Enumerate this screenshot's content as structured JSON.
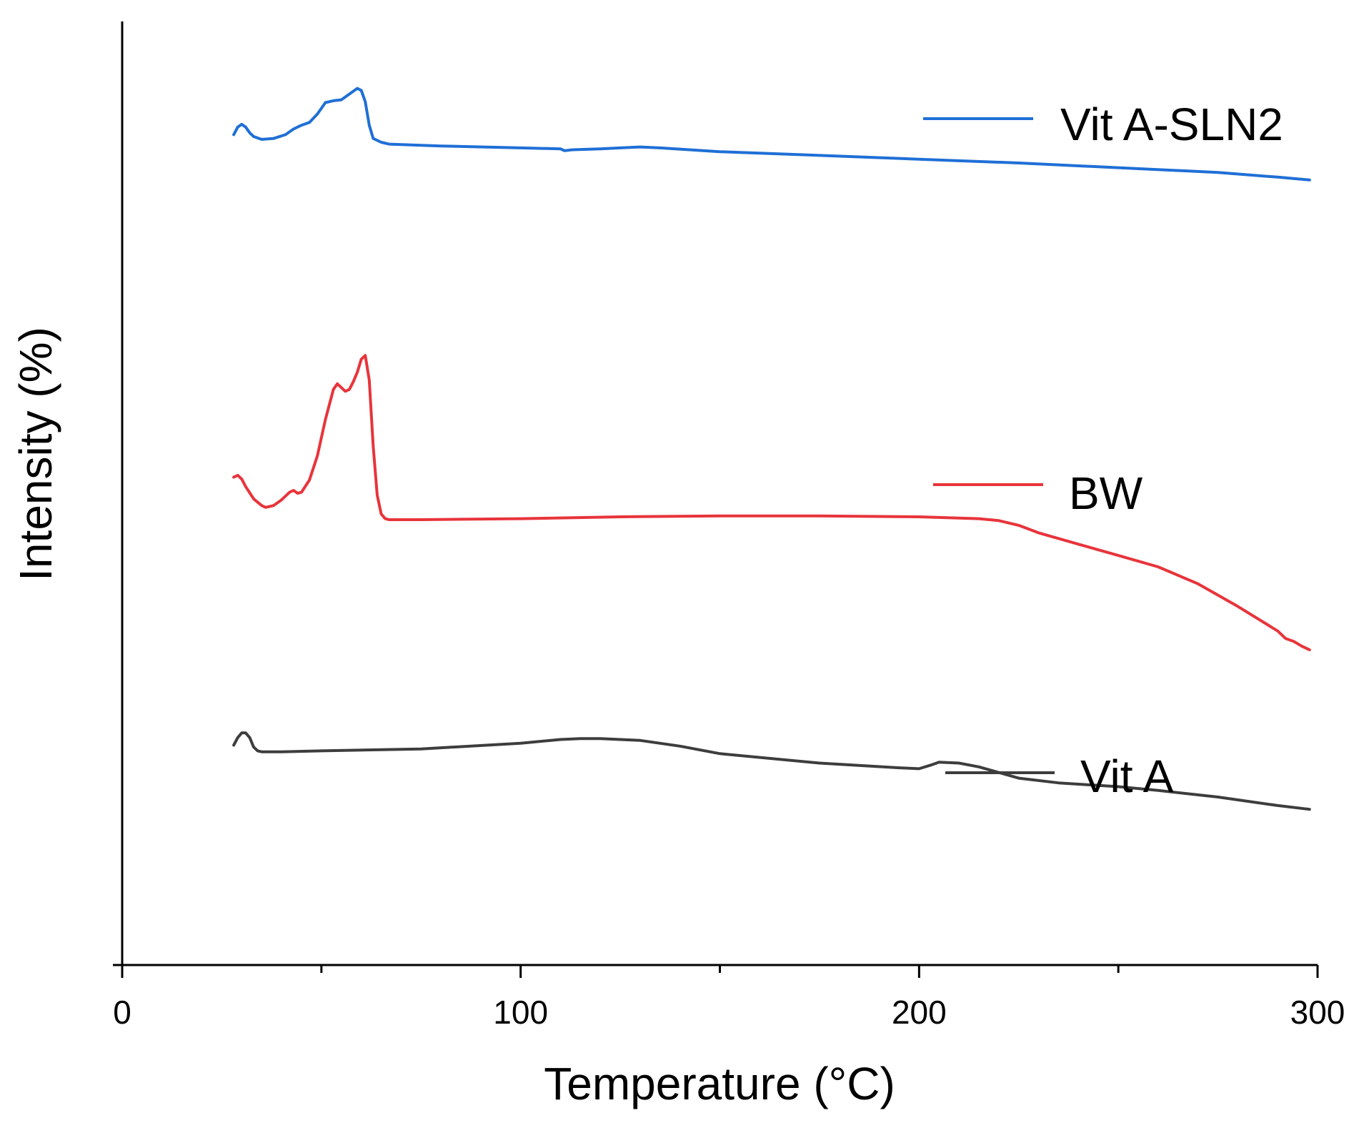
{
  "chart_data": {
    "type": "line",
    "title": "",
    "xlabel": "Temperature (°C)",
    "ylabel": "Intensity (%)",
    "xlim": [
      0,
      300
    ],
    "ylim": [
      0,
      100
    ],
    "x_ticks": [
      "0",
      "100",
      "200",
      "300"
    ],
    "x_minor_ticks": [
      50,
      150,
      250
    ],
    "y_ticks_shown": false,
    "grid": false,
    "legend": "inline-right",
    "series": [
      {
        "name": "Vit A-SLN2",
        "color": "#1f6fd6",
        "points": [
          [
            28,
            88.0
          ],
          [
            29,
            88.8
          ],
          [
            30,
            89.1
          ],
          [
            31,
            88.8
          ],
          [
            32,
            88.2
          ],
          [
            33,
            87.8
          ],
          [
            35,
            87.5
          ],
          [
            38,
            87.6
          ],
          [
            41,
            88.0
          ],
          [
            43,
            88.6
          ],
          [
            45,
            89.0
          ],
          [
            47,
            89.3
          ],
          [
            49,
            90.2
          ],
          [
            51,
            91.4
          ],
          [
            53,
            91.6
          ],
          [
            55,
            91.7
          ],
          [
            57,
            92.3
          ],
          [
            59,
            92.9
          ],
          [
            60,
            92.7
          ],
          [
            61,
            91.5
          ],
          [
            62,
            89.0
          ],
          [
            63,
            87.6
          ],
          [
            65,
            87.2
          ],
          [
            67,
            87.0
          ],
          [
            80,
            86.8
          ],
          [
            100,
            86.6
          ],
          [
            110,
            86.5
          ],
          [
            111,
            86.3
          ],
          [
            113,
            86.4
          ],
          [
            120,
            86.5
          ],
          [
            125,
            86.6
          ],
          [
            130,
            86.7
          ],
          [
            135,
            86.6
          ],
          [
            150,
            86.2
          ],
          [
            175,
            85.8
          ],
          [
            200,
            85.4
          ],
          [
            225,
            85.0
          ],
          [
            250,
            84.5
          ],
          [
            275,
            84.0
          ],
          [
            290,
            83.5
          ],
          [
            298,
            83.2
          ]
        ]
      },
      {
        "name": "BW",
        "color": "#e8343b",
        "points": [
          [
            28,
            51.7
          ],
          [
            29,
            51.9
          ],
          [
            30,
            51.5
          ],
          [
            31,
            50.7
          ],
          [
            33,
            49.4
          ],
          [
            35,
            48.7
          ],
          [
            36,
            48.5
          ],
          [
            38,
            48.7
          ],
          [
            40,
            49.3
          ],
          [
            42,
            50.1
          ],
          [
            43,
            50.3
          ],
          [
            44,
            50.0
          ],
          [
            45,
            50.1
          ],
          [
            47,
            51.4
          ],
          [
            49,
            54.0
          ],
          [
            51,
            57.8
          ],
          [
            53,
            61.0
          ],
          [
            54,
            61.6
          ],
          [
            55,
            61.2
          ],
          [
            56,
            60.8
          ],
          [
            57,
            61.0
          ],
          [
            58,
            61.8
          ],
          [
            59,
            62.8
          ],
          [
            60,
            64.2
          ],
          [
            61,
            64.6
          ],
          [
            62,
            62.0
          ],
          [
            63,
            55.0
          ],
          [
            64,
            49.8
          ],
          [
            65,
            47.8
          ],
          [
            66,
            47.3
          ],
          [
            67,
            47.2
          ],
          [
            75,
            47.2
          ],
          [
            100,
            47.3
          ],
          [
            125,
            47.5
          ],
          [
            150,
            47.6
          ],
          [
            175,
            47.6
          ],
          [
            200,
            47.5
          ],
          [
            215,
            47.3
          ],
          [
            220,
            47.1
          ],
          [
            225,
            46.6
          ],
          [
            230,
            45.8
          ],
          [
            240,
            44.6
          ],
          [
            250,
            43.4
          ],
          [
            260,
            42.2
          ],
          [
            270,
            40.4
          ],
          [
            280,
            38.0
          ],
          [
            290,
            35.4
          ],
          [
            292,
            34.6
          ],
          [
            294,
            34.3
          ],
          [
            296,
            33.8
          ],
          [
            298,
            33.4
          ]
        ]
      },
      {
        "name": "Vit A",
        "color": "#3d3d3d",
        "points": [
          [
            28,
            23.3
          ],
          [
            29,
            24.1
          ],
          [
            30,
            24.6
          ],
          [
            31,
            24.6
          ],
          [
            32,
            24.1
          ],
          [
            33,
            23.1
          ],
          [
            34,
            22.7
          ],
          [
            35,
            22.6
          ],
          [
            40,
            22.6
          ],
          [
            50,
            22.7
          ],
          [
            75,
            22.9
          ],
          [
            100,
            23.5
          ],
          [
            110,
            23.9
          ],
          [
            115,
            24.0
          ],
          [
            120,
            24.0
          ],
          [
            130,
            23.8
          ],
          [
            140,
            23.2
          ],
          [
            150,
            22.4
          ],
          [
            175,
            21.4
          ],
          [
            195,
            20.9
          ],
          [
            200,
            20.8
          ],
          [
            203,
            21.2
          ],
          [
            205,
            21.5
          ],
          [
            210,
            21.4
          ],
          [
            215,
            21.0
          ],
          [
            225,
            19.8
          ],
          [
            235,
            19.3
          ],
          [
            250,
            18.9
          ],
          [
            260,
            18.5
          ],
          [
            275,
            17.8
          ],
          [
            290,
            16.9
          ],
          [
            298,
            16.5
          ]
        ]
      }
    ]
  }
}
